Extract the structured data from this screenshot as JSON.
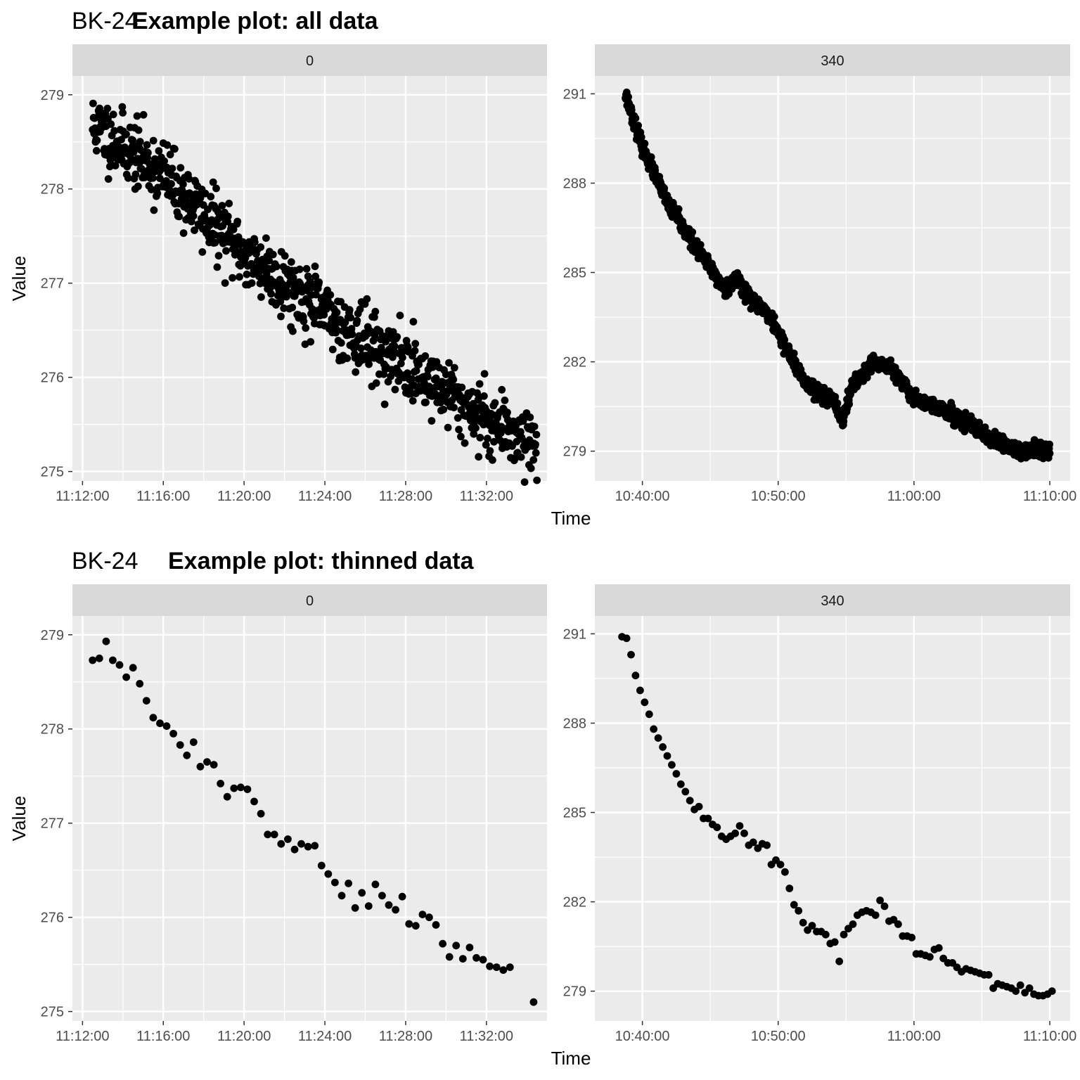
{
  "figure": {
    "top_title_site": "BK-24",
    "top_title_main": "Example plot: all data",
    "bottom_title_site": "BK-24",
    "bottom_title_main": "Example plot: thinned data",
    "y_label": "Value",
    "x_label": "Time"
  },
  "chart_data": [
    {
      "type": "scatter",
      "panel": "all data / facet 0",
      "facet_label": "0",
      "title": "Example plot: all data",
      "xlabel": "Time",
      "ylabel": "Value",
      "x_range": [
        "11:11:30",
        "11:35:00"
      ],
      "ylim": [
        274.9,
        279.2
      ],
      "x_ticks": [
        "11:12:00",
        "11:16:00",
        "11:20:00",
        "11:24:00",
        "11:28:00",
        "11:32:00"
      ],
      "y_ticks": [
        275,
        276,
        277,
        278,
        279
      ],
      "mode": "dense",
      "x_start": "11:12:30",
      "x_end": "11:34:30",
      "n_points": 900,
      "noise": 0.18,
      "seed": 11,
      "trend": [
        [
          "11:12:30",
          278.68
        ],
        [
          "11:14:00",
          278.45
        ],
        [
          "11:16:00",
          278.15
        ],
        [
          "11:18:00",
          277.72
        ],
        [
          "11:20:00",
          277.32
        ],
        [
          "11:22:00",
          277.0
        ],
        [
          "11:24:00",
          276.68
        ],
        [
          "11:26:00",
          276.38
        ],
        [
          "11:28:00",
          276.12
        ],
        [
          "11:30:00",
          275.85
        ],
        [
          "11:32:00",
          275.55
        ],
        [
          "11:34:30",
          275.3
        ]
      ],
      "grid": true,
      "legend": "none"
    },
    {
      "type": "scatter",
      "panel": "all data / facet 340",
      "facet_label": "340",
      "title": "Example plot: all data",
      "xlabel": "Time",
      "ylabel": "Value",
      "x_range": [
        "10:36:30",
        "11:11:30"
      ],
      "ylim": [
        278.0,
        291.6
      ],
      "x_ticks": [
        "10:40:00",
        "10:50:00",
        "11:00:00",
        "11:10:00"
      ],
      "y_ticks": [
        279,
        282,
        285,
        288,
        291
      ],
      "mode": "dense",
      "x_start": "10:38:45",
      "x_end": "11:10:00",
      "n_points": 1300,
      "noise": 0.13,
      "seed": 23,
      "trend": [
        [
          "10:38:45",
          291.0
        ],
        [
          "10:40:00",
          289.2
        ],
        [
          "10:42:00",
          287.2
        ],
        [
          "10:44:00",
          285.8
        ],
        [
          "10:46:00",
          284.5
        ],
        [
          "10:47:00",
          284.8
        ],
        [
          "10:48:00",
          284.1
        ],
        [
          "10:49:00",
          283.8
        ],
        [
          "10:50:00",
          283.0
        ],
        [
          "10:51:00",
          282.1
        ],
        [
          "10:52:00",
          281.3
        ],
        [
          "10:54:00",
          280.7
        ],
        [
          "10:54:45",
          280.0
        ],
        [
          "10:55:30",
          281.3
        ],
        [
          "10:57:00",
          281.9
        ],
        [
          "10:58:00",
          281.9
        ],
        [
          "10:59:00",
          281.4
        ],
        [
          "11:00:00",
          280.8
        ],
        [
          "11:02:00",
          280.4
        ],
        [
          "11:04:00",
          279.9
        ],
        [
          "11:06:00",
          279.3
        ],
        [
          "11:08:00",
          279.0
        ],
        [
          "11:10:00",
          279.0
        ]
      ],
      "grid": true,
      "legend": "none"
    },
    {
      "type": "scatter",
      "panel": "thinned data / facet 0",
      "facet_label": "0",
      "title": "Example plot: thinned data",
      "xlabel": "Time",
      "ylabel": "Value",
      "x_range": [
        "11:11:30",
        "11:35:00"
      ],
      "ylim": [
        274.9,
        279.2
      ],
      "x_ticks": [
        "11:12:00",
        "11:16:00",
        "11:20:00",
        "11:24:00",
        "11:28:00",
        "11:32:00"
      ],
      "y_ticks": [
        275,
        276,
        277,
        278,
        279
      ],
      "mode": "points",
      "points": [
        [
          "11:12:30",
          278.73
        ],
        [
          "11:12:50",
          278.75
        ],
        [
          "11:13:10",
          278.93
        ],
        [
          "11:13:30",
          278.73
        ],
        [
          "11:13:50",
          278.68
        ],
        [
          "11:14:10",
          278.55
        ],
        [
          "11:14:30",
          278.65
        ],
        [
          "11:14:50",
          278.48
        ],
        [
          "11:15:10",
          278.3
        ],
        [
          "11:15:30",
          278.12
        ],
        [
          "11:15:50",
          278.06
        ],
        [
          "11:16:10",
          278.03
        ],
        [
          "11:16:30",
          277.95
        ],
        [
          "11:16:50",
          277.83
        ],
        [
          "11:17:10",
          277.72
        ],
        [
          "11:17:30",
          277.86
        ],
        [
          "11:17:50",
          277.6
        ],
        [
          "11:18:10",
          277.65
        ],
        [
          "11:18:30",
          277.62
        ],
        [
          "11:18:50",
          277.42
        ],
        [
          "11:19:10",
          277.28
        ],
        [
          "11:19:30",
          277.37
        ],
        [
          "11:19:50",
          277.38
        ],
        [
          "11:20:10",
          277.36
        ],
        [
          "11:20:30",
          277.23
        ],
        [
          "11:20:50",
          277.1
        ],
        [
          "11:21:10",
          276.88
        ],
        [
          "11:21:30",
          276.88
        ],
        [
          "11:21:50",
          276.78
        ],
        [
          "11:22:10",
          276.83
        ],
        [
          "11:22:30",
          276.72
        ],
        [
          "11:22:50",
          276.78
        ],
        [
          "11:23:10",
          276.75
        ],
        [
          "11:23:30",
          276.76
        ],
        [
          "11:23:50",
          276.55
        ],
        [
          "11:24:10",
          276.46
        ],
        [
          "11:24:30",
          276.37
        ],
        [
          "11:24:50",
          276.23
        ],
        [
          "11:25:10",
          276.36
        ],
        [
          "11:25:30",
          276.1
        ],
        [
          "11:25:50",
          276.26
        ],
        [
          "11:26:10",
          276.12
        ],
        [
          "11:26:30",
          276.35
        ],
        [
          "11:26:50",
          276.23
        ],
        [
          "11:27:10",
          276.13
        ],
        [
          "11:27:30",
          276.08
        ],
        [
          "11:27:50",
          276.22
        ],
        [
          "11:28:10",
          275.93
        ],
        [
          "11:28:30",
          275.91
        ],
        [
          "11:28:50",
          276.03
        ],
        [
          "11:29:10",
          276.0
        ],
        [
          "11:29:30",
          275.92
        ],
        [
          "11:29:50",
          275.72
        ],
        [
          "11:30:10",
          275.58
        ],
        [
          "11:30:30",
          275.7
        ],
        [
          "11:30:50",
          275.56
        ],
        [
          "11:31:10",
          275.68
        ],
        [
          "11:31:30",
          275.57
        ],
        [
          "11:31:50",
          275.55
        ],
        [
          "11:32:10",
          275.48
        ],
        [
          "11:32:30",
          275.47
        ],
        [
          "11:32:50",
          275.44
        ],
        [
          "11:33:10",
          275.47
        ],
        [
          "11:34:20",
          275.1
        ]
      ],
      "grid": true,
      "legend": "none"
    },
    {
      "type": "scatter",
      "panel": "thinned data / facet 340",
      "facet_label": "340",
      "title": "Example plot: thinned data",
      "xlabel": "Time",
      "ylabel": "Value",
      "x_range": [
        "10:36:30",
        "11:11:30"
      ],
      "ylim": [
        278.0,
        291.6
      ],
      "x_ticks": [
        "10:40:00",
        "10:50:00",
        "11:00:00",
        "11:10:00"
      ],
      "y_ticks": [
        279,
        282,
        285,
        288,
        291
      ],
      "mode": "points",
      "points": [
        [
          "10:38:30",
          290.9
        ],
        [
          "10:38:50",
          290.85
        ],
        [
          "10:39:10",
          290.3
        ],
        [
          "10:39:30",
          289.6
        ],
        [
          "10:39:50",
          289.1
        ],
        [
          "10:40:10",
          288.7
        ],
        [
          "10:40:30",
          288.3
        ],
        [
          "10:40:50",
          287.8
        ],
        [
          "10:41:10",
          287.5
        ],
        [
          "10:41:30",
          287.2
        ],
        [
          "10:41:50",
          286.9
        ],
        [
          "10:42:10",
          286.6
        ],
        [
          "10:42:30",
          286.3
        ],
        [
          "10:42:50",
          285.95
        ],
        [
          "10:43:10",
          285.7
        ],
        [
          "10:43:30",
          285.4
        ],
        [
          "10:43:50",
          285.1
        ],
        [
          "10:44:10",
          285.2
        ],
        [
          "10:44:30",
          284.8
        ],
        [
          "10:44:50",
          284.8
        ],
        [
          "10:45:10",
          284.6
        ],
        [
          "10:45:30",
          284.5
        ],
        [
          "10:45:50",
          284.2
        ],
        [
          "10:46:10",
          284.1
        ],
        [
          "10:46:30",
          284.2
        ],
        [
          "10:46:50",
          284.3
        ],
        [
          "10:47:10",
          284.55
        ],
        [
          "10:47:30",
          284.3
        ],
        [
          "10:47:50",
          283.9
        ],
        [
          "10:48:10",
          284.0
        ],
        [
          "10:48:30",
          283.8
        ],
        [
          "10:48:50",
          283.95
        ],
        [
          "10:49:10",
          283.9
        ],
        [
          "10:49:30",
          283.25
        ],
        [
          "10:49:50",
          283.4
        ],
        [
          "10:50:10",
          283.25
        ],
        [
          "10:50:30",
          283.0
        ],
        [
          "10:50:50",
          282.45
        ],
        [
          "10:51:10",
          281.9
        ],
        [
          "10:51:30",
          281.7
        ],
        [
          "10:51:50",
          281.3
        ],
        [
          "10:52:10",
          281.05
        ],
        [
          "10:52:30",
          281.2
        ],
        [
          "10:52:50",
          281.0
        ],
        [
          "10:53:10",
          281.0
        ],
        [
          "10:53:30",
          280.9
        ],
        [
          "10:53:50",
          280.6
        ],
        [
          "10:54:10",
          280.65
        ],
        [
          "10:54:30",
          280.0
        ],
        [
          "10:54:50",
          280.9
        ],
        [
          "10:55:10",
          281.1
        ],
        [
          "10:55:30",
          281.25
        ],
        [
          "10:55:50",
          281.55
        ],
        [
          "10:56:10",
          281.65
        ],
        [
          "10:56:30",
          281.7
        ],
        [
          "10:56:50",
          281.65
        ],
        [
          "10:57:10",
          281.55
        ],
        [
          "10:57:30",
          282.05
        ],
        [
          "10:57:50",
          281.85
        ],
        [
          "10:58:10",
          281.35
        ],
        [
          "10:58:30",
          281.4
        ],
        [
          "10:58:50",
          281.25
        ],
        [
          "10:59:10",
          280.85
        ],
        [
          "10:59:30",
          280.85
        ],
        [
          "10:59:50",
          280.8
        ],
        [
          "11:00:10",
          280.25
        ],
        [
          "11:00:30",
          280.25
        ],
        [
          "11:00:50",
          280.2
        ],
        [
          "11:01:10",
          280.15
        ],
        [
          "11:01:30",
          280.4
        ],
        [
          "11:01:50",
          280.45
        ],
        [
          "11:02:10",
          280.1
        ],
        [
          "11:02:30",
          279.95
        ],
        [
          "11:02:50",
          279.95
        ],
        [
          "11:03:10",
          279.8
        ],
        [
          "11:03:30",
          279.65
        ],
        [
          "11:03:50",
          279.75
        ],
        [
          "11:04:10",
          279.7
        ],
        [
          "11:04:30",
          279.65
        ],
        [
          "11:04:50",
          279.6
        ],
        [
          "11:05:10",
          279.55
        ],
        [
          "11:05:30",
          279.55
        ],
        [
          "11:05:50",
          279.1
        ],
        [
          "11:06:10",
          279.25
        ],
        [
          "11:06:30",
          279.2
        ],
        [
          "11:06:50",
          279.15
        ],
        [
          "11:07:10",
          279.1
        ],
        [
          "11:07:30",
          279.0
        ],
        [
          "11:07:50",
          279.2
        ],
        [
          "11:08:10",
          278.95
        ],
        [
          "11:08:30",
          279.1
        ],
        [
          "11:08:50",
          278.9
        ],
        [
          "11:09:10",
          278.85
        ],
        [
          "11:09:30",
          278.85
        ],
        [
          "11:09:50",
          278.9
        ],
        [
          "11:10:10",
          279.0
        ]
      ],
      "grid": true,
      "legend": "none"
    }
  ]
}
